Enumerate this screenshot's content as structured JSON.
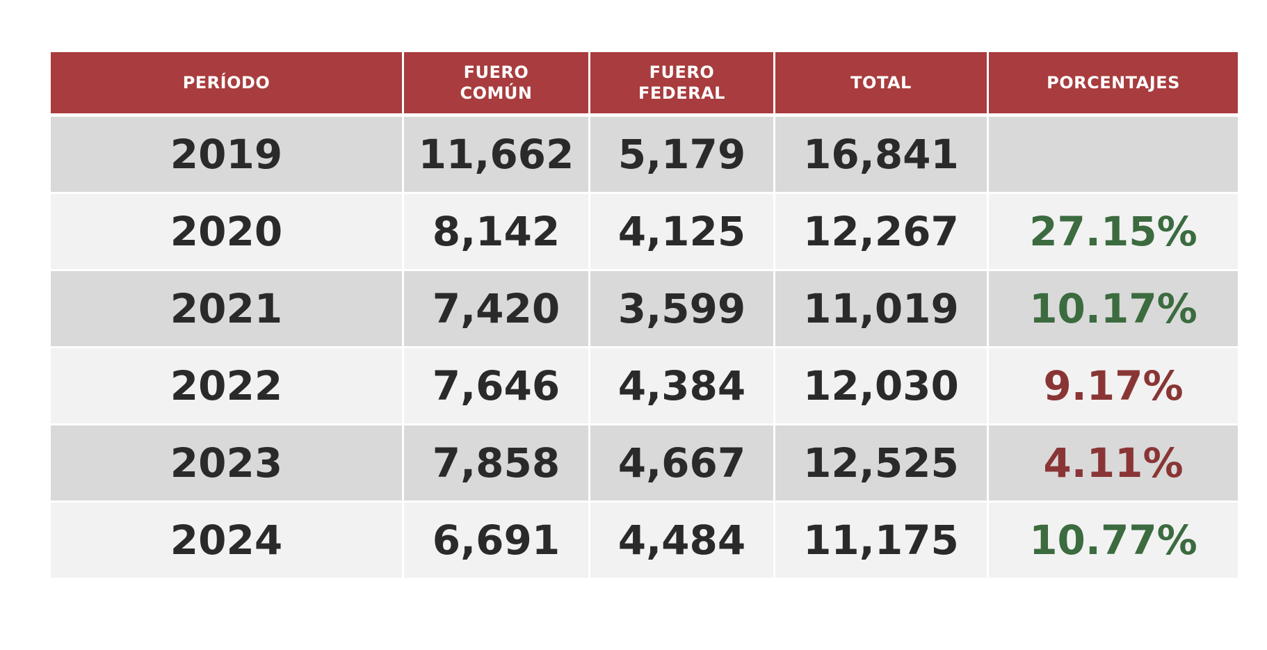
{
  "colors": {
    "header_bg": "#a83c3e",
    "header_text": "#ffffff",
    "row_dark": "#d9d9d9",
    "row_light": "#f2f2f2",
    "value_text": "#2a2a2a",
    "percent_green": "#3b6b3f",
    "percent_red": "#8a3535"
  },
  "chart_data": {
    "type": "table",
    "columns": [
      [
        "PERÍODO"
      ],
      [
        "FUERO",
        "COMÚN"
      ],
      [
        "FUERO",
        "FEDERAL"
      ],
      [
        "TOTAL"
      ],
      [
        "PORCENTAJES"
      ]
    ],
    "rows": [
      {
        "periodo": "2019",
        "fuero_comun": "11,662",
        "fuero_federal": "5,179",
        "total": "16,841",
        "porcentaje": "",
        "trend": ""
      },
      {
        "periodo": "2020",
        "fuero_comun": "8,142",
        "fuero_federal": "4,125",
        "total": "12,267",
        "porcentaje": "27.15%",
        "trend": "green"
      },
      {
        "periodo": "2021",
        "fuero_comun": "7,420",
        "fuero_federal": "3,599",
        "total": "11,019",
        "porcentaje": "10.17%",
        "trend": "green"
      },
      {
        "periodo": "2022",
        "fuero_comun": "7,646",
        "fuero_federal": "4,384",
        "total": "12,030",
        "porcentaje": "9.17%",
        "trend": "red"
      },
      {
        "periodo": "2023",
        "fuero_comun": "7,858",
        "fuero_federal": "4,667",
        "total": "12,525",
        "porcentaje": "4.11%",
        "trend": "red"
      },
      {
        "periodo": "2024",
        "fuero_comun": "6,691",
        "fuero_federal": "4,484",
        "total": "11,175",
        "porcentaje": "10.77%",
        "trend": "green"
      }
    ]
  }
}
